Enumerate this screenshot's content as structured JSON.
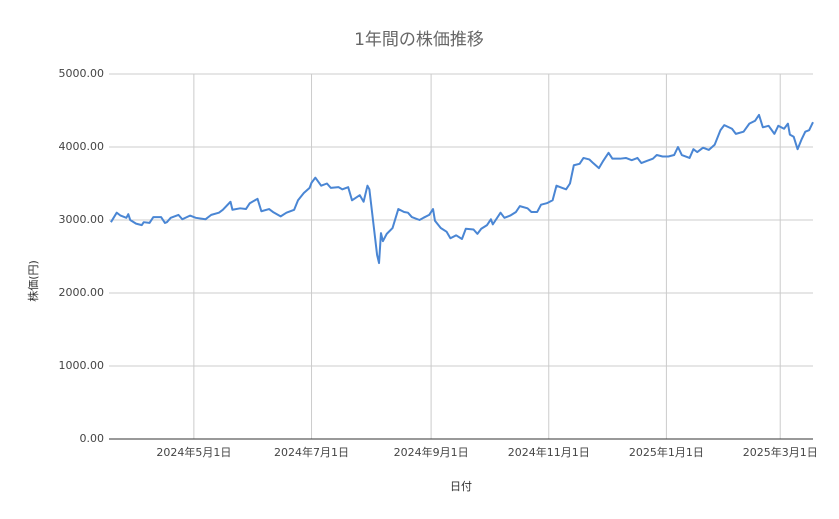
{
  "chart_data": {
    "type": "line",
    "title": "1年間の株価推移",
    "x_label": "日付",
    "y_label": "株価(円)",
    "color": "#4a86d4",
    "grid": true,
    "xlim": [
      "2024-03-18",
      "2025-03-18"
    ],
    "xticks": [
      {
        "value": "2024-05-01",
        "label": "2024年5月1日"
      },
      {
        "value": "2024-07-01",
        "label": "2024年7月1日"
      },
      {
        "value": "2024-09-01",
        "label": "2024年9月1日"
      },
      {
        "value": "2024-11-01",
        "label": "2024年11月1日"
      },
      {
        "value": "2025-01-01",
        "label": "2025年1月1日"
      },
      {
        "value": "2025-03-01",
        "label": "2025年3月1日"
      }
    ],
    "ylim": [
      0,
      5000
    ],
    "yticks": [
      {
        "value": 0,
        "label": "0.00"
      },
      {
        "value": 1000,
        "label": "1000.00"
      },
      {
        "value": 2000,
        "label": "2000.00"
      },
      {
        "value": 3000,
        "label": "3000.00"
      },
      {
        "value": 4000,
        "label": "4000.00"
      },
      {
        "value": 5000,
        "label": "5000.00"
      }
    ],
    "x": [
      "2024-03-19",
      "2024-03-22",
      "2024-03-24",
      "2024-03-27",
      "2024-03-28",
      "2024-03-29",
      "2024-04-01",
      "2024-04-04",
      "2024-04-05",
      "2024-04-08",
      "2024-04-10",
      "2024-04-14",
      "2024-04-16",
      "2024-04-17",
      "2024-04-19",
      "2024-04-23",
      "2024-04-25",
      "2024-04-29",
      "2024-05-02",
      "2024-05-07",
      "2024-05-10",
      "2024-05-14",
      "2024-05-16",
      "2024-05-20",
      "2024-05-21",
      "2024-05-25",
      "2024-05-28",
      "2024-05-30",
      "2024-06-03",
      "2024-06-05",
      "2024-06-09",
      "2024-06-11",
      "2024-06-15",
      "2024-06-18",
      "2024-06-22",
      "2024-06-24",
      "2024-06-27",
      "2024-06-30",
      "2024-07-01",
      "2024-07-03",
      "2024-07-06",
      "2024-07-09",
      "2024-07-11",
      "2024-07-15",
      "2024-07-17",
      "2024-07-20",
      "2024-07-22",
      "2024-07-26",
      "2024-07-28",
      "2024-07-30",
      "2024-07-31",
      "2024-08-02",
      "2024-08-04",
      "2024-08-05",
      "2024-08-06",
      "2024-08-07",
      "2024-08-09",
      "2024-08-12",
      "2024-08-15",
      "2024-08-18",
      "2024-08-20",
      "2024-08-22",
      "2024-08-26",
      "2024-08-28",
      "2024-08-31",
      "2024-09-02",
      "2024-09-03",
      "2024-09-06",
      "2024-09-09",
      "2024-09-11",
      "2024-09-14",
      "2024-09-17",
      "2024-09-19",
      "2024-09-23",
      "2024-09-25",
      "2024-09-27",
      "2024-09-30",
      "2024-10-02",
      "2024-10-03",
      "2024-10-07",
      "2024-10-09",
      "2024-10-12",
      "2024-10-15",
      "2024-10-17",
      "2024-10-21",
      "2024-10-23",
      "2024-10-26",
      "2024-10-28",
      "2024-10-31",
      "2024-11-03",
      "2024-11-05",
      "2024-11-08",
      "2024-11-10",
      "2024-11-12",
      "2024-11-14",
      "2024-11-17",
      "2024-11-19",
      "2024-11-22",
      "2024-11-24",
      "2024-11-27",
      "2024-11-29",
      "2024-12-02",
      "2024-12-04",
      "2024-12-08",
      "2024-12-11",
      "2024-12-14",
      "2024-12-17",
      "2024-12-19",
      "2024-12-22",
      "2024-12-25",
      "2024-12-27",
      "2024-12-30",
      "2025-01-02",
      "2025-01-05",
      "2025-01-07",
      "2025-01-09",
      "2025-01-13",
      "2025-01-15",
      "2025-01-17",
      "2025-01-20",
      "2025-01-23",
      "2025-01-26",
      "2025-01-29",
      "2025-01-31",
      "2025-02-04",
      "2025-02-06",
      "2025-02-10",
      "2025-02-13",
      "2025-02-16",
      "2025-02-18",
      "2025-02-20",
      "2025-02-23",
      "2025-02-26",
      "2025-02-28",
      "2025-03-03",
      "2025-03-05",
      "2025-03-06",
      "2025-03-08",
      "2025-03-10",
      "2025-03-12",
      "2025-03-14",
      "2025-03-16",
      "2025-03-18"
    ],
    "values": [
      2970,
      3100,
      3060,
      3030,
      3080,
      3000,
      2950,
      2930,
      2970,
      2960,
      3040,
      3040,
      2960,
      2970,
      3030,
      3070,
      3010,
      3060,
      3030,
      3010,
      3070,
      3100,
      3140,
      3250,
      3140,
      3160,
      3150,
      3230,
      3290,
      3120,
      3150,
      3110,
      3050,
      3100,
      3140,
      3270,
      3370,
      3440,
      3510,
      3580,
      3470,
      3500,
      3440,
      3450,
      3420,
      3450,
      3270,
      3340,
      3250,
      3470,
      3420,
      2970,
      2520,
      2410,
      2820,
      2710,
      2810,
      2890,
      3150,
      3110,
      3100,
      3040,
      3000,
      3030,
      3070,
      3150,
      2990,
      2890,
      2840,
      2750,
      2790,
      2740,
      2880,
      2870,
      2810,
      2880,
      2930,
      3010,
      2940,
      3100,
      3030,
      3060,
      3110,
      3190,
      3160,
      3110,
      3110,
      3210,
      3230,
      3270,
      3470,
      3440,
      3420,
      3500,
      3750,
      3770,
      3850,
      3830,
      3780,
      3710,
      3800,
      3920,
      3840,
      3840,
      3850,
      3820,
      3850,
      3780,
      3810,
      3840,
      3890,
      3870,
      3870,
      3890,
      4000,
      3890,
      3850,
      3970,
      3930,
      3990,
      3960,
      4030,
      4230,
      4300,
      4250,
      4180,
      4210,
      4320,
      4360,
      4440,
      4270,
      4290,
      4180,
      4290,
      4250,
      4320,
      4170,
      4140,
      3970,
      4100,
      4210,
      4230,
      4340
    ]
  }
}
